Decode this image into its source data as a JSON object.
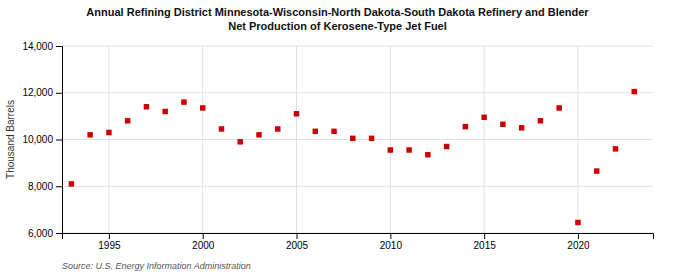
{
  "chart_data": {
    "type": "scatter",
    "title": "Annual Refining District Minnesota-Wisconsin-North Dakota-South Dakota Refinery and Blender\nNet Production of Kerosene-Type Jet Fuel",
    "y_label": "Thousand Barrels",
    "annotations": [
      "Source: U.S. Energy Information Administration"
    ],
    "x": [
      1993,
      1994,
      1995,
      1996,
      1997,
      1998,
      1999,
      2000,
      2001,
      2002,
      2003,
      2004,
      2005,
      2006,
      2007,
      2008,
      2009,
      2010,
      2011,
      2012,
      2013,
      2014,
      2015,
      2016,
      2017,
      2018,
      2019,
      2020,
      2021,
      2022,
      2023
    ],
    "values": [
      8100,
      10200,
      10300,
      10800,
      11400,
      11200,
      11600,
      11350,
      10450,
      9900,
      10200,
      10450,
      11100,
      10350,
      10350,
      10050,
      10050,
      9550,
      9550,
      9350,
      9700,
      10550,
      10950,
      10650,
      10500,
      10800,
      11350,
      6450,
      8650,
      9600,
      12050
    ],
    "color": "#cc0000",
    "marker": "square",
    "xlim": [
      1992.5,
      2024
    ],
    "xticks": [
      1995,
      2000,
      2005,
      2010,
      2015,
      2020
    ],
    "ylim": [
      6000,
      14000
    ],
    "yticks": [
      {
        "value": 6000,
        "label": "6,000"
      },
      {
        "value": 8000,
        "label": "8,000"
      },
      {
        "value": 10000,
        "label": "10,000"
      },
      {
        "value": 12000,
        "label": "12,000"
      },
      {
        "value": 14000,
        "label": "14,000"
      }
    ],
    "grid": true
  }
}
